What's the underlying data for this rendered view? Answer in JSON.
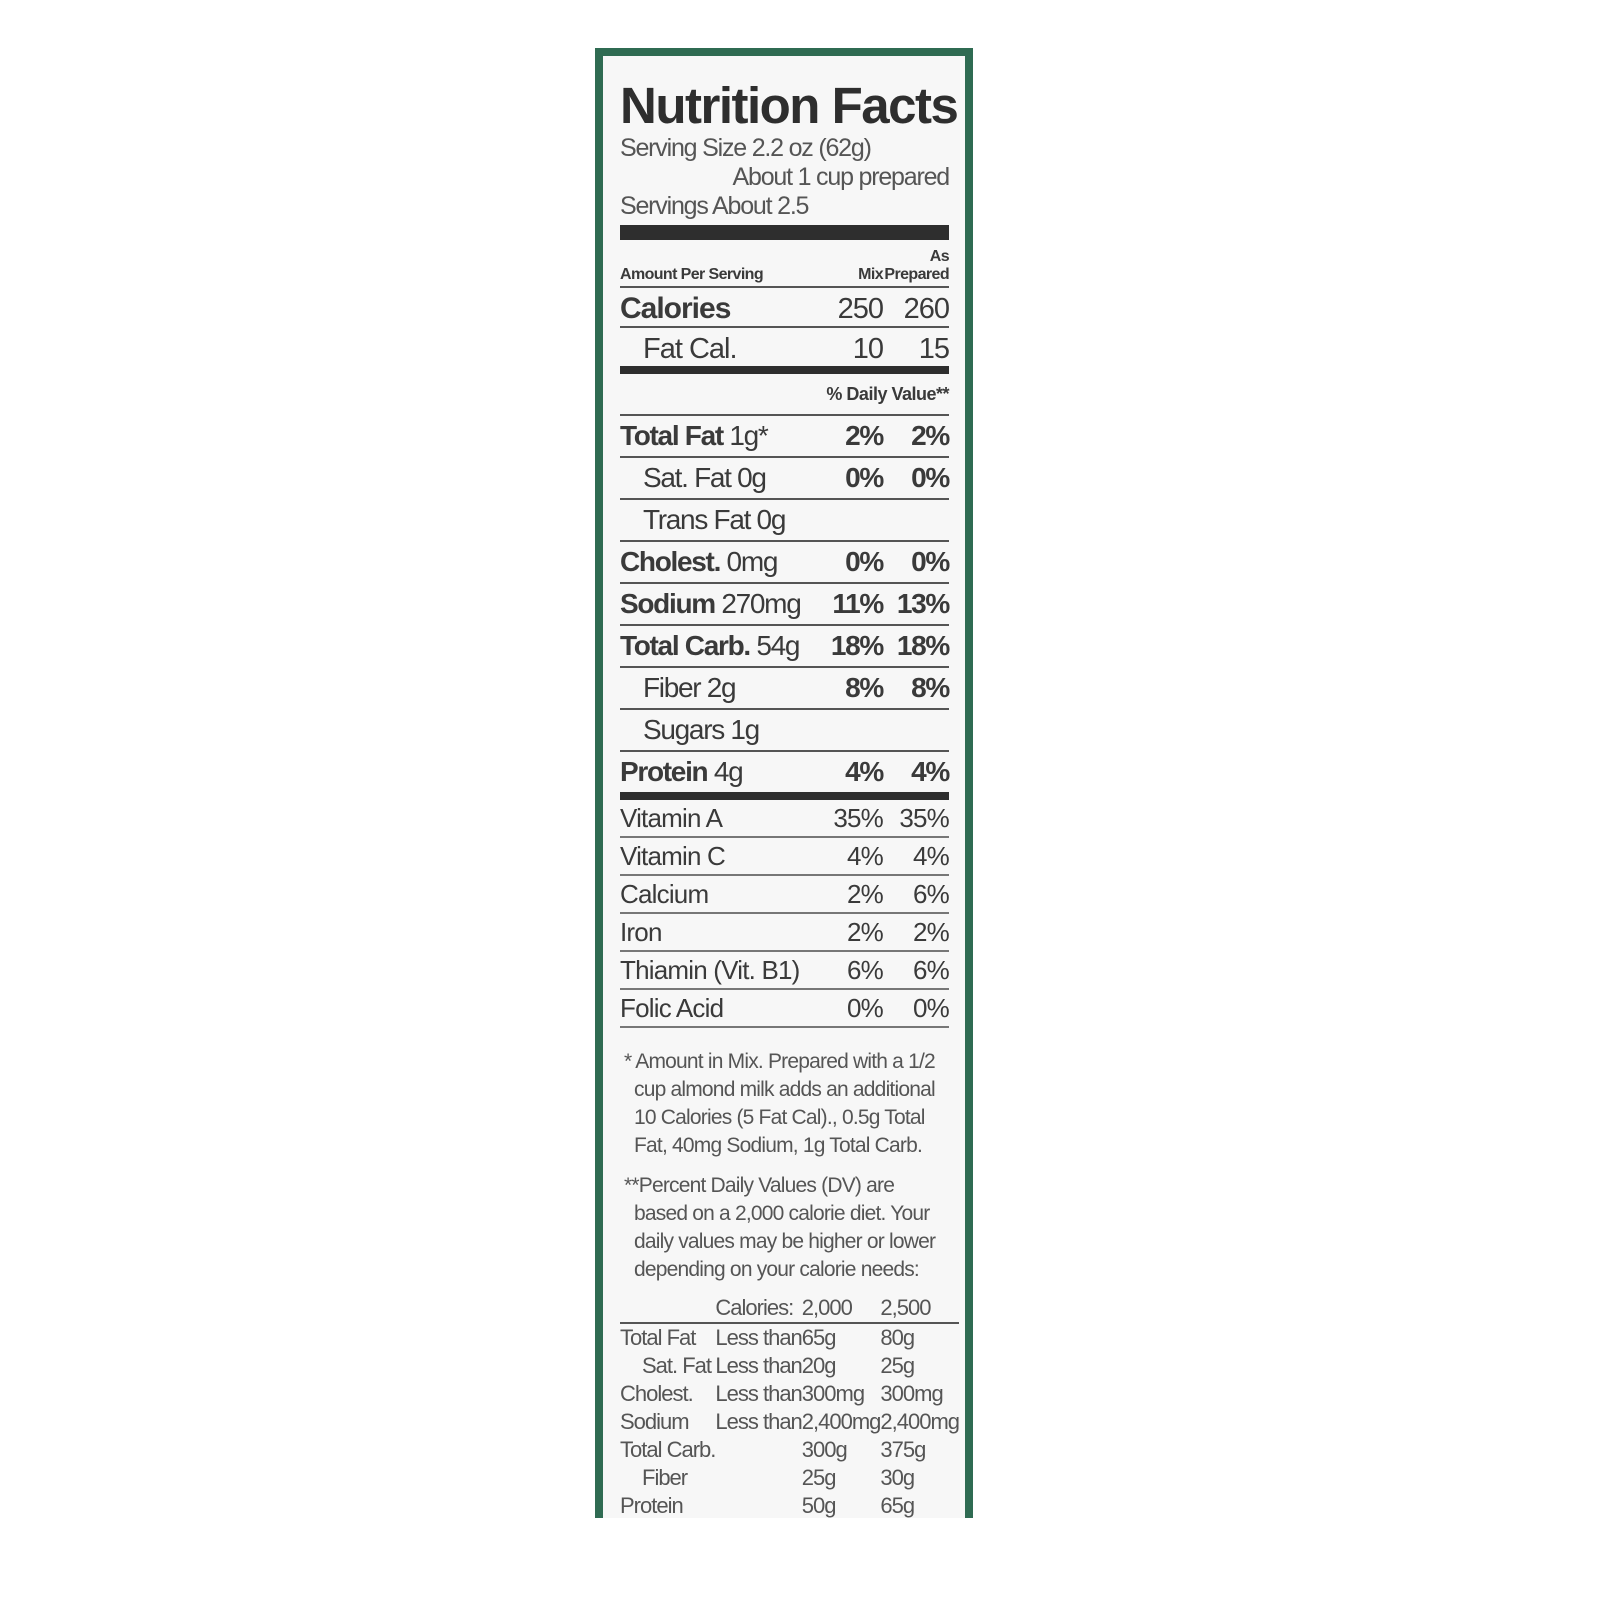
{
  "title": "Nutrition Facts",
  "serving_size": "Serving Size 2.2 oz (62g)",
  "serving_note": "About 1 cup prepared",
  "servings": "Servings About 2.5",
  "header": {
    "as": "As",
    "amount": "Amount Per Serving",
    "mix": "Mix",
    "prepared": "Prepared"
  },
  "calories": {
    "label": "Calories",
    "mix": "250",
    "prepared": "260"
  },
  "fat_cal": {
    "label": "Fat Cal.",
    "mix": "10",
    "prepared": "15"
  },
  "daily_value": "% Daily Value**",
  "nutrients": [
    {
      "name": "Total Fat",
      "amount": "1g*",
      "mix": "2%",
      "prepared": "2%"
    },
    {
      "name": "Sat. Fat 0g",
      "amount": "",
      "mix": "0%",
      "prepared": "0%"
    },
    {
      "name": "Trans Fat 0g",
      "amount": "",
      "mix": "",
      "prepared": ""
    },
    {
      "name": "Cholest.",
      "amount": "0mg",
      "mix": "0%",
      "prepared": "0%"
    },
    {
      "name": "Sodium",
      "amount": "270mg",
      "mix": "11%",
      "prepared": "13%"
    },
    {
      "name": "Total Carb.",
      "amount": "54g",
      "mix": "18%",
      "prepared": "18%"
    },
    {
      "name": "Fiber 2g",
      "amount": "",
      "mix": "8%",
      "prepared": "8%"
    },
    {
      "name": "Sugars 1g",
      "amount": "",
      "mix": "",
      "prepared": ""
    },
    {
      "name": "Protein",
      "amount": "4g",
      "mix": "4%",
      "prepared": "4%"
    }
  ],
  "vitamins": [
    {
      "name": "Vitamin A",
      "mix": "35%",
      "prepared": "35%"
    },
    {
      "name": "Vitamin C",
      "mix": "4%",
      "prepared": "4%"
    },
    {
      "name": "Calcium",
      "mix": "2%",
      "prepared": "6%"
    },
    {
      "name": "Iron",
      "mix": "2%",
      "prepared": "2%"
    },
    {
      "name": "Thiamin (Vit. B1)",
      "mix": "6%",
      "prepared": "6%"
    },
    {
      "name": "Folic Acid",
      "mix": "0%",
      "prepared": "0%"
    }
  ],
  "footnote1": "* Amount in Mix. Prepared with a 1/2 cup almond milk adds an additional 10 Calories (5 Fat Cal)., 0.5g Total Fat, 40mg Sodium, 1g Total Carb.",
  "footnote2": "**Percent Daily Values (DV) are based on a 2,000 calorie diet. Your daily values may be higher or lower depending on your calorie needs:",
  "dv_table": {
    "header": [
      "",
      "Calories:",
      "2,000",
      "2,500"
    ],
    "rows": [
      [
        "Total Fat",
        "Less than",
        "65g",
        "80g"
      ],
      [
        "Sat. Fat",
        "Less than",
        "20g",
        "25g"
      ],
      [
        "Cholest.",
        "Less than",
        "300mg",
        "300mg"
      ],
      [
        "Sodium",
        "Less than",
        "2,400mg",
        "2,400mg"
      ],
      [
        "Total Carb.",
        "",
        "300g",
        "375g"
      ],
      [
        "Fiber",
        "",
        "25g",
        "30g"
      ],
      [
        "Protein",
        "",
        "50g",
        "65g"
      ]
    ]
  },
  "colors": {
    "border": "#2f6b52",
    "text": "#3a3a3a",
    "bar": "#2e2e2e"
  }
}
